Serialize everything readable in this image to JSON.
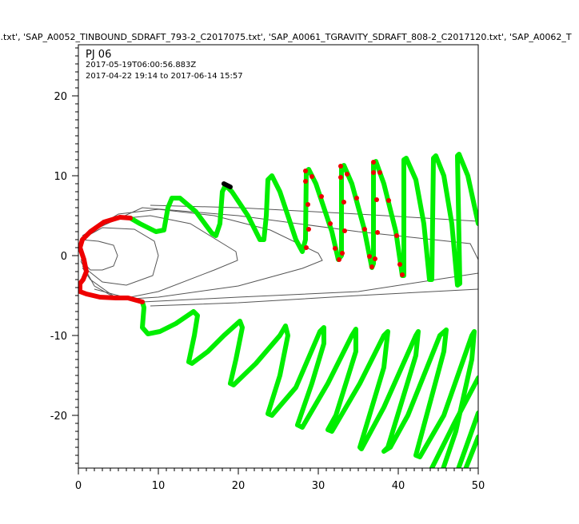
{
  "chart_data": {
    "type": "line",
    "title": "..txt', 'SAP_A0052_TINBOUND_SDRAFT_793-2_C2017075.txt', 'SAP_A0061_TGRAVITY_SDRAFT_808-2_C2017120.txt', 'SAP_A0062_T",
    "annotations": [
      "PJ 06",
      "2017-05-19T06:00:56.883Z",
      "2017-04-22 19:14 to 2017-06-14 15:57"
    ],
    "xlim": [
      0,
      50
    ],
    "ylim": [
      -26.6,
      26.4
    ],
    "xticks": [
      "0",
      "10",
      "20",
      "30",
      "40",
      "50"
    ],
    "yticks": [
      "-20",
      "-10",
      "0",
      "10",
      "20"
    ],
    "grid": false,
    "colors": {
      "trajectory": "#00ee00",
      "highlight": "#ee0000",
      "field_lines": "#555555",
      "marker": "#000000"
    },
    "field_lines": [
      [
        [
          0.3,
          2.0
        ],
        [
          2.5,
          1.8
        ],
        [
          4.4,
          1.3
        ],
        [
          4.9,
          0
        ],
        [
          4.4,
          -1.3
        ],
        [
          3,
          -1.8
        ],
        [
          1.5,
          -1.8
        ],
        [
          0.3,
          -0.5
        ]
      ],
      [
        [
          0.3,
          2.0
        ],
        [
          3,
          3.5
        ],
        [
          7,
          3.3
        ],
        [
          9.5,
          1.8
        ],
        [
          10,
          0
        ],
        [
          9.3,
          -2.5
        ],
        [
          6,
          -3.7
        ],
        [
          3,
          -3.3
        ],
        [
          0.5,
          -1.3
        ]
      ],
      [
        [
          0.4,
          2.3
        ],
        [
          4,
          4.5
        ],
        [
          9,
          5.0
        ],
        [
          14,
          4.0
        ],
        [
          19.7,
          0.5
        ],
        [
          19.9,
          -0.6
        ],
        [
          17,
          -1.8
        ],
        [
          10,
          -4.5
        ],
        [
          5,
          -5.5
        ],
        [
          1.5,
          -3.0
        ],
        [
          0.5,
          -1.5
        ]
      ],
      [
        [
          0.5,
          2.5
        ],
        [
          5,
          5.2
        ],
        [
          10,
          5.8
        ],
        [
          17,
          5.0
        ],
        [
          24,
          3.2
        ],
        [
          30,
          0.3
        ],
        [
          30.5,
          -0.6
        ],
        [
          28,
          -1.6
        ],
        [
          20,
          -3.8
        ],
        [
          10,
          -5.2
        ],
        [
          5,
          -5.5
        ],
        [
          2,
          -3.8
        ],
        [
          0.3,
          -0.7
        ]
      ],
      [
        [
          1,
          2.8
        ],
        [
          8,
          6
        ],
        [
          20,
          5
        ],
        [
          35,
          3
        ],
        [
          49,
          1.5
        ],
        [
          50,
          -0.5
        ],
        [
          50,
          -2.2
        ],
        [
          35,
          -4.5
        ],
        [
          20,
          -5.2
        ],
        [
          8,
          -5.8
        ],
        [
          2,
          -4.2
        ]
      ],
      [
        [
          9,
          6.3
        ],
        [
          20,
          6.0
        ],
        [
          35,
          5.2
        ],
        [
          50,
          4.3
        ]
      ],
      [
        [
          9,
          -6.3
        ],
        [
          20,
          -5.9
        ],
        [
          35,
          -5.0
        ],
        [
          50,
          -4.2
        ]
      ]
    ],
    "series": [
      {
        "color": "#00ee00",
        "points": [
          [
            6.5,
            4.7
          ],
          [
            7.7,
            4.0
          ],
          [
            9.7,
            3.0
          ],
          [
            10.7,
            3.2
          ],
          [
            11.2,
            6.0
          ],
          [
            11.7,
            7.2
          ],
          [
            12.7,
            7.2
          ],
          [
            14.7,
            5.5
          ],
          [
            16.7,
            2.8
          ],
          [
            17.2,
            2.5
          ],
          [
            17.7,
            4.0
          ],
          [
            18.0,
            8.0
          ],
          [
            18.4,
            8.8
          ],
          [
            19.2,
            8.0
          ],
          [
            21.2,
            5.0
          ],
          [
            22.7,
            2.0
          ],
          [
            23.2,
            2.0
          ],
          [
            23.5,
            5.0
          ],
          [
            23.7,
            9.5
          ],
          [
            24.2,
            10.0
          ],
          [
            25.2,
            8.0
          ],
          [
            27.2,
            2.0
          ],
          [
            28.0,
            0.5
          ],
          [
            28.4,
            2.0
          ],
          [
            28.5,
            10.5
          ],
          [
            28.8,
            10.8
          ],
          [
            29.7,
            9.0
          ],
          [
            31.7,
            3.0
          ],
          [
            32.5,
            -0.5
          ],
          [
            32.9,
            0
          ],
          [
            32.9,
            11.0
          ],
          [
            33.2,
            11.3
          ],
          [
            34.2,
            9.0
          ],
          [
            35.7,
            3.5
          ],
          [
            36.7,
            -1.5
          ],
          [
            36.9,
            -1.0
          ],
          [
            36.9,
            11.5
          ],
          [
            37.2,
            11.8
          ],
          [
            38.2,
            9.0
          ],
          [
            39.7,
            3.0
          ],
          [
            40.5,
            -2.5
          ],
          [
            40.7,
            -2.5
          ],
          [
            40.7,
            12.0
          ],
          [
            41.0,
            12.2
          ],
          [
            42.2,
            9.5
          ],
          [
            43.2,
            4.0
          ],
          [
            43.9,
            -3.0
          ],
          [
            44.2,
            -3.0
          ],
          [
            44.4,
            12.2
          ],
          [
            44.7,
            12.5
          ],
          [
            45.7,
            10.0
          ],
          [
            46.7,
            4.0
          ],
          [
            47.4,
            -3.7
          ],
          [
            47.7,
            -3.5
          ],
          [
            47.4,
            12.5
          ],
          [
            47.6,
            12.7
          ],
          [
            48.7,
            10.0
          ],
          [
            50,
            4.0
          ]
        ]
      },
      {
        "color": "#00ee00",
        "points": [
          [
            8.0,
            -5.8
          ],
          [
            8.2,
            -6.5
          ],
          [
            8.0,
            -9.0
          ],
          [
            8.7,
            -9.8
          ],
          [
            10.2,
            -9.5
          ],
          [
            12.2,
            -8.5
          ],
          [
            14.4,
            -7.0
          ],
          [
            14.9,
            -7.5
          ],
          [
            14.5,
            -10
          ],
          [
            13.8,
            -13.3
          ],
          [
            14.2,
            -13.5
          ],
          [
            16.2,
            -12
          ],
          [
            18.2,
            -10
          ],
          [
            20.2,
            -8.2
          ],
          [
            20.5,
            -9.0
          ],
          [
            19.7,
            -13
          ],
          [
            19.0,
            -16
          ],
          [
            19.4,
            -16.2
          ],
          [
            22.2,
            -13.5
          ],
          [
            25.2,
            -10
          ],
          [
            25.9,
            -8.8
          ],
          [
            26.2,
            -10
          ],
          [
            25.2,
            -15
          ],
          [
            23.7,
            -19.8
          ],
          [
            24.2,
            -20
          ],
          [
            27.2,
            -16.5
          ],
          [
            30.2,
            -9.5
          ],
          [
            30.7,
            -9.0
          ],
          [
            30.7,
            -11
          ],
          [
            29.2,
            -16
          ],
          [
            27.4,
            -21.2
          ],
          [
            28.0,
            -21.5
          ],
          [
            31.2,
            -16
          ],
          [
            34.2,
            -10
          ],
          [
            34.7,
            -9.2
          ],
          [
            34.7,
            -12
          ],
          [
            32.2,
            -20
          ],
          [
            31.2,
            -21.8
          ],
          [
            31.7,
            -22
          ],
          [
            35.2,
            -16
          ],
          [
            38.2,
            -10
          ],
          [
            38.7,
            -9.5
          ],
          [
            38.2,
            -14
          ],
          [
            35.2,
            -24
          ],
          [
            35.4,
            -24.2
          ],
          [
            38.2,
            -19
          ],
          [
            42.2,
            -10
          ],
          [
            42.5,
            -9.5
          ],
          [
            42.2,
            -12.5
          ],
          [
            38.7,
            -24
          ],
          [
            38.2,
            -24.5
          ],
          [
            39.0,
            -24
          ],
          [
            41.2,
            -20
          ],
          [
            45.2,
            -10
          ],
          [
            46.0,
            -9.3
          ],
          [
            45.7,
            -12
          ],
          [
            42.2,
            -25
          ],
          [
            42.7,
            -25.2
          ],
          [
            45.7,
            -20
          ],
          [
            49.2,
            -10
          ],
          [
            49.5,
            -9.5
          ],
          [
            49.2,
            -13
          ],
          [
            47.2,
            -22
          ],
          [
            45.5,
            -27
          ]
        ]
      },
      {
        "color": "#00ee00",
        "points": [
          [
            44,
            -27
          ],
          [
            47,
            -21
          ],
          [
            50,
            -15.3
          ]
        ]
      },
      {
        "color": "#00ee00",
        "points": [
          [
            47.4,
            -27
          ],
          [
            50,
            -19.7
          ]
        ]
      },
      {
        "color": "#00ee00",
        "points": [
          [
            48.3,
            -27
          ],
          [
            50,
            -22.7
          ]
        ]
      },
      {
        "color": "#ee0000",
        "points": [
          [
            6.5,
            4.7
          ],
          [
            5.2,
            4.8
          ],
          [
            3.2,
            4.2
          ],
          [
            1.5,
            3.0
          ],
          [
            0.5,
            2.0
          ],
          [
            0.2,
            1.0
          ],
          [
            0.7,
            -0.5
          ],
          [
            1.0,
            -2.0
          ],
          [
            0.6,
            -3.0
          ],
          [
            0.2,
            -3.5
          ],
          [
            0.2,
            -4.5
          ],
          [
            1.0,
            -4.8
          ],
          [
            2.7,
            -5.2
          ],
          [
            4.7,
            -5.3
          ],
          [
            6.2,
            -5.3
          ],
          [
            8.0,
            -5.8
          ]
        ]
      },
      {
        "color": "#000000",
        "points": [
          [
            18.2,
            9.0
          ],
          [
            19.0,
            8.6
          ]
        ]
      }
    ],
    "markers": {
      "color": "#ee0000",
      "points": [
        [
          28.4,
          10.6
        ],
        [
          29.2,
          9.9
        ],
        [
          28.4,
          9.3
        ],
        [
          28.7,
          6.4
        ],
        [
          28.8,
          3.3
        ],
        [
          28.5,
          1.0
        ],
        [
          30.4,
          7.4
        ],
        [
          31.5,
          4.0
        ],
        [
          32.1,
          0.9
        ],
        [
          33.0,
          0.3
        ],
        [
          32.6,
          -0.5
        ],
        [
          32.8,
          11.2
        ],
        [
          33.6,
          10.2
        ],
        [
          32.8,
          9.8
        ],
        [
          33.2,
          6.7
        ],
        [
          33.3,
          3.1
        ],
        [
          34.8,
          7.2
        ],
        [
          35.8,
          3.3
        ],
        [
          36.4,
          -0.1
        ],
        [
          37.1,
          -0.4
        ],
        [
          36.7,
          -1.4
        ],
        [
          36.9,
          11.7
        ],
        [
          37.7,
          10.4
        ],
        [
          36.9,
          10.4
        ],
        [
          37.3,
          7.0
        ],
        [
          37.4,
          2.9
        ],
        [
          38.8,
          6.9
        ],
        [
          39.8,
          2.5
        ],
        [
          40.2,
          -1.1
        ],
        [
          40.5,
          -2.4
        ]
      ]
    }
  }
}
